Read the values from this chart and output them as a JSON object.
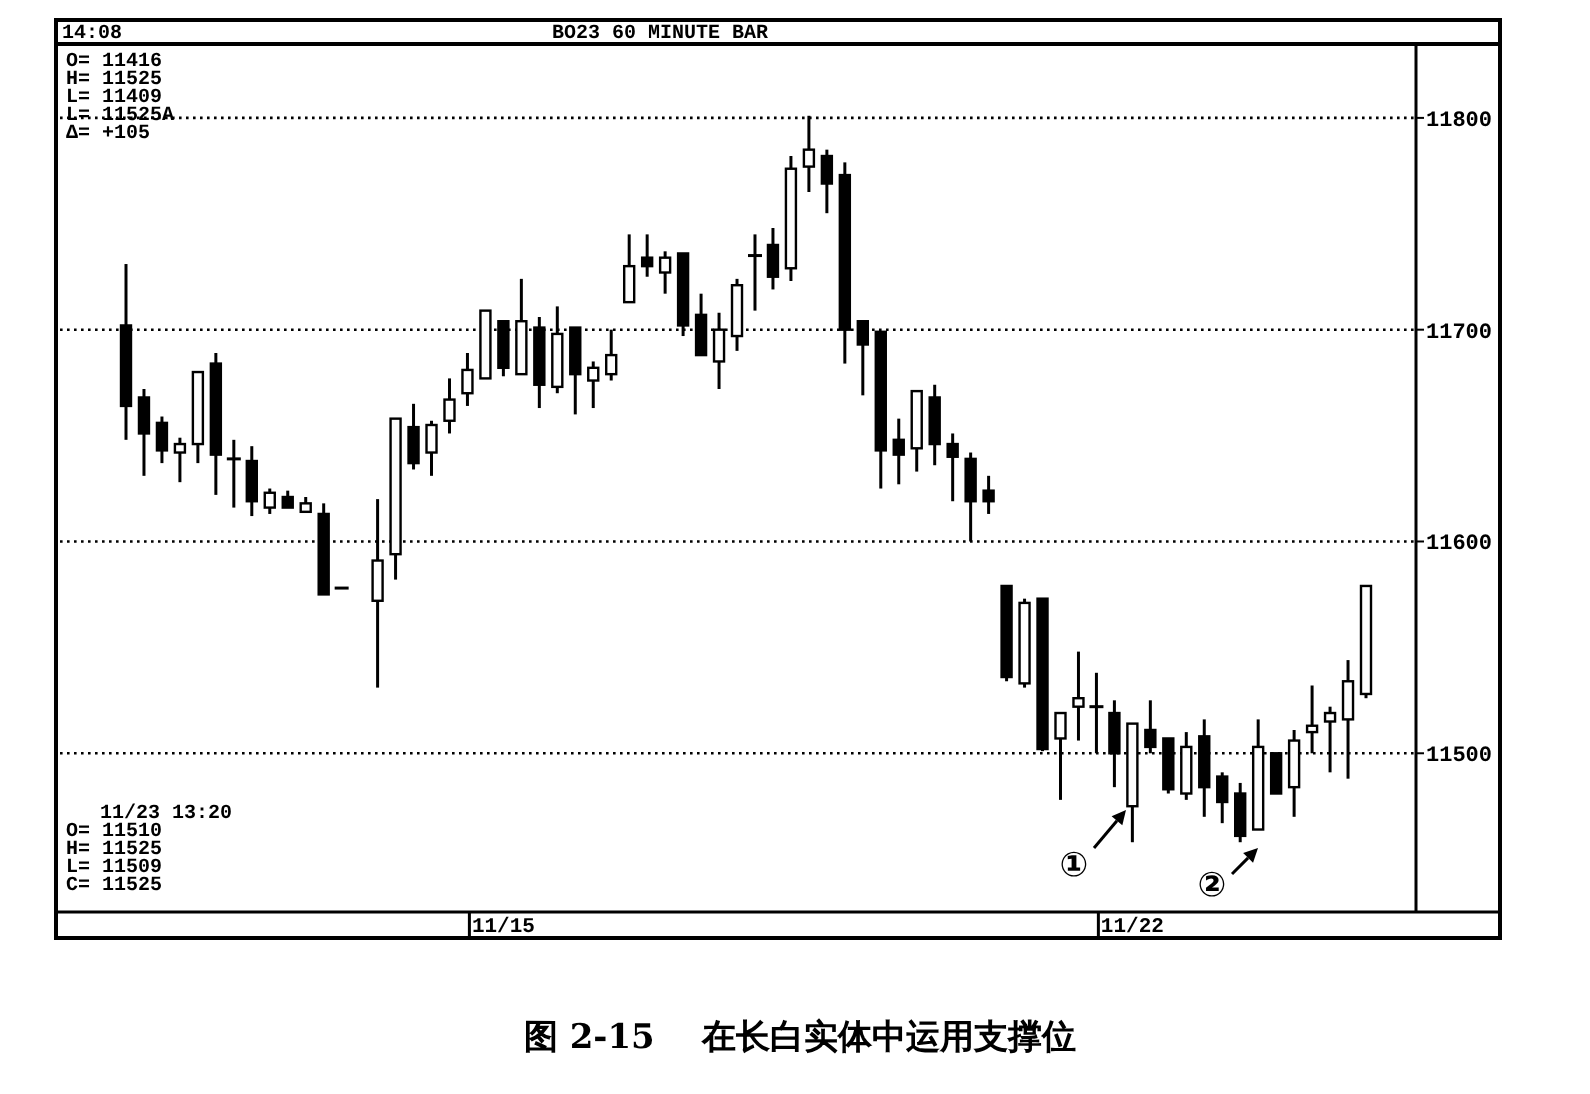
{
  "chart_data": {
    "type": "candlestick",
    "title": "BO23 60 MINUTE BAR",
    "categories": [
      null,
      null,
      null,
      null,
      null,
      null,
      null,
      null,
      null,
      null,
      null,
      null,
      null,
      null,
      null,
      null,
      null,
      null,
      null,
      null,
      null,
      "11/15",
      null,
      null,
      null,
      null,
      null,
      null,
      null,
      null,
      null,
      null,
      null,
      null,
      null,
      null,
      null,
      null,
      null,
      null,
      null,
      null,
      null,
      null,
      null,
      null,
      null,
      null,
      null,
      null,
      null,
      null,
      null,
      null,
      null,
      null,
      "11/22",
      null,
      null,
      null,
      null,
      null,
      null,
      null,
      null,
      null,
      null,
      null,
      null,
      null
    ],
    "ohlc": [
      [
        11702,
        11731,
        11648,
        11664
      ],
      [
        11668,
        11672,
        11631,
        11651
      ],
      [
        11656,
        11659,
        11637,
        11643
      ],
      [
        11642,
        11649,
        11628,
        11646
      ],
      [
        11646,
        11680,
        11637,
        11680
      ],
      [
        11684,
        11689,
        11622,
        11641
      ],
      [
        11639,
        11648,
        11616,
        11639
      ],
      [
        11638,
        11645,
        11612,
        11619
      ],
      [
        11616,
        11625,
        11613,
        11623
      ],
      [
        11621,
        11624,
        11616,
        11616
      ],
      [
        11614,
        11621,
        11614,
        11618
      ],
      [
        11613,
        11618,
        11575,
        11575
      ],
      [
        11578,
        11578,
        11578,
        11578
      ],
      null,
      [
        11572,
        11620,
        11531,
        11591
      ],
      [
        11594,
        11658,
        11582,
        11658
      ],
      [
        11654,
        11665,
        11634,
        11637
      ],
      [
        11642,
        11657,
        11631,
        11655
      ],
      [
        11657,
        11677,
        11651,
        11667
      ],
      [
        11670,
        11689,
        11664,
        11681
      ],
      [
        11677,
        11709,
        11677,
        11709
      ],
      [
        11704,
        11704,
        11678,
        11682
      ],
      [
        11679,
        11724,
        11679,
        11704
      ],
      [
        11701,
        11706,
        11663,
        11674
      ],
      [
        11673,
        11711,
        11670,
        11698
      ],
      [
        11701,
        11701,
        11660,
        11679
      ],
      [
        11676,
        11685,
        11663,
        11682
      ],
      [
        11679,
        11700,
        11676,
        11688
      ],
      [
        11713,
        11745,
        11713,
        11730
      ],
      [
        11734,
        11745,
        11725,
        11730
      ],
      [
        11727,
        11737,
        11717,
        11734
      ],
      [
        11736,
        11736,
        11697,
        11702
      ],
      [
        11707,
        11717,
        11688,
        11688
      ],
      [
        11685,
        11708,
        11672,
        11700
      ],
      [
        11697,
        11724,
        11690,
        11721
      ],
      [
        11735,
        11745,
        11709,
        11735
      ],
      [
        11740,
        11748,
        11719,
        11725
      ],
      [
        11729,
        11782,
        11723,
        11776
      ],
      [
        11777,
        11801,
        11765,
        11785
      ],
      [
        11782,
        11785,
        11755,
        11769
      ],
      [
        11773,
        11779,
        11684,
        11700
      ],
      [
        11704,
        11704,
        11669,
        11693
      ],
      [
        11699,
        11699,
        11625,
        11643
      ],
      [
        11648,
        11658,
        11627,
        11641
      ],
      [
        11644,
        11671,
        11633,
        11671
      ],
      [
        11668,
        11674,
        11636,
        11646
      ],
      [
        11646,
        11651,
        11619,
        11640
      ],
      [
        11639,
        11642,
        11600,
        11619
      ],
      [
        11624,
        11631,
        11613,
        11619
      ],
      [
        11579,
        11579,
        11534,
        11536
      ],
      [
        11533,
        11573,
        11531,
        11571
      ],
      [
        11573,
        11573,
        11501,
        11502
      ],
      [
        11507,
        11519,
        11478,
        11519
      ],
      [
        11522,
        11548,
        11506,
        11526
      ],
      [
        11522,
        11538,
        11500,
        11522
      ],
      [
        11519,
        11525,
        11484,
        11500
      ],
      [
        11475,
        11514,
        11458,
        11514
      ],
      [
        11511,
        11525,
        11500,
        11503
      ],
      [
        11507,
        11507,
        11481,
        11483
      ],
      [
        11481,
        11510,
        11478,
        11503
      ],
      [
        11508,
        11516,
        11470,
        11484
      ],
      [
        11489,
        11491,
        11467,
        11477
      ],
      [
        11481,
        11486,
        11458,
        11461
      ],
      [
        11464,
        11516,
        11464,
        11503
      ],
      [
        11500,
        11500,
        11481,
        11481
      ],
      [
        11484,
        11511,
        11470,
        11506
      ],
      [
        11510,
        11532,
        11500,
        11513
      ],
      [
        11515,
        11522,
        11491,
        11519
      ],
      [
        11516,
        11544,
        11488,
        11534
      ],
      [
        11528,
        11579,
        11526,
        11579
      ]
    ],
    "ylim": [
      11426,
      11833
    ],
    "yticks": [
      11500,
      11600,
      11700,
      11800
    ],
    "grid": "y",
    "annotations": [
      "14:08",
      "O= 11416",
      "H= 11525",
      "L= 11409",
      "L= 11525A",
      "Δ= +105",
      "11/23 13:20",
      "O= 11510",
      "H= 11525",
      "L= 11509",
      "C= 11525",
      "①",
      "②",
      "图 2-15    在长白实体中运用支撑位"
    ]
  }
}
